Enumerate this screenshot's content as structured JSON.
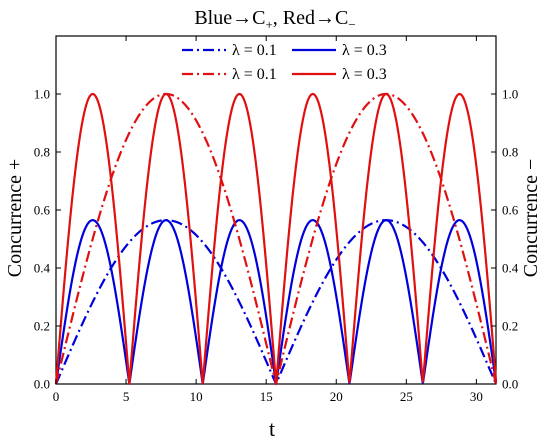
{
  "chart_data": {
    "type": "line",
    "title": {
      "main": "Blue→C",
      "sub1": "+",
      "mid": ", Red→C",
      "sub2": "−"
    },
    "xlabel": "t",
    "ylabel_left": "Concurrence +",
    "ylabel_right": "Concurrence −",
    "xlim": [
      0,
      31.4
    ],
    "ylim": [
      0,
      1.2
    ],
    "xticks": [
      0,
      5,
      10,
      15,
      20,
      25,
      30
    ],
    "yticks": [
      0.0,
      0.2,
      0.4,
      0.6,
      0.8,
      1.0
    ],
    "ytick_labels": [
      "0.0",
      "0.2",
      "0.4",
      "0.6",
      "0.8",
      "1.0"
    ],
    "legend_position": "top-center",
    "colors": {
      "blue": "#0000dd",
      "red": "#e01010"
    },
    "series": [
      {
        "name": "λ = 0.1",
        "group": "C+",
        "color": "#0000dd",
        "dash": "dashdot",
        "amplitude": 0.565,
        "period": 15.7
      },
      {
        "name": "λ = 0.3",
        "group": "C+",
        "color": "#0000dd",
        "dash": "solid",
        "amplitude": 0.565,
        "period": 5.236
      },
      {
        "name": "λ = 0.1",
        "group": "C−",
        "color": "#e01010",
        "dash": "dashdot",
        "amplitude": 1.0,
        "period": 15.7
      },
      {
        "name": "λ = 0.3",
        "group": "C−",
        "color": "#e01010",
        "dash": "solid",
        "amplitude": 1.0,
        "period": 5.236
      }
    ]
  }
}
